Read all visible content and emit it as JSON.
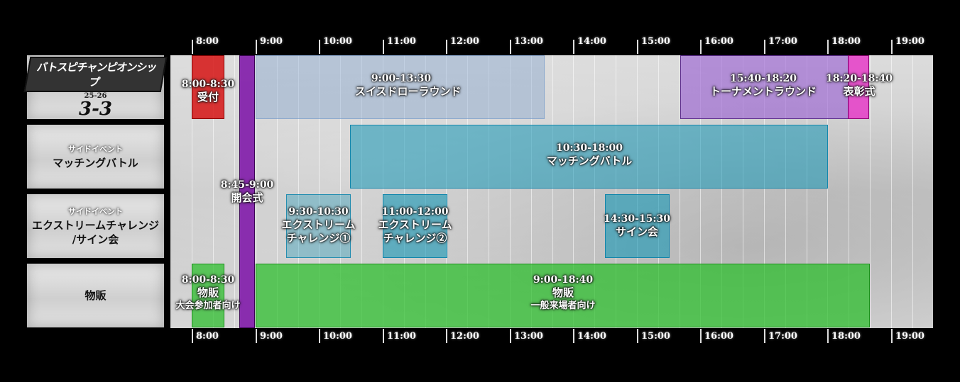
{
  "hours_top": [
    "8:00",
    "9:00",
    "10:00",
    "11:00",
    "12:00",
    "13:00",
    "14:00",
    "15:00",
    "16:00",
    "17:00",
    "18:00",
    "19:00"
  ],
  "hours_bottom": [
    "8:00",
    "9:00",
    "10:00",
    "11:00",
    "12:00",
    "13:00",
    "14:00",
    "15:00",
    "16:00",
    "17:00",
    "18:00",
    "19:00"
  ],
  "rows": [
    {
      "logo": {
        "banner": "バトスピチャンピオンシップ",
        "year": "25-26",
        "num": "3-3"
      }
    },
    {
      "sub": "サイドイベント",
      "main": "マッチングバトル"
    },
    {
      "sub": "サイドイベント",
      "main": "エクストリームチャレンジ\n/サイン会"
    },
    {
      "main": "物販"
    }
  ],
  "events": {
    "reception": {
      "time": "8:00-8:30",
      "name": "受付"
    },
    "opening": {
      "time": "8:45-9:00",
      "name": "開会式"
    },
    "swiss": {
      "time": "9:00-13:30",
      "name": "スイスドローラウンド"
    },
    "tournament": {
      "time": "15:40-18:20",
      "name": "トーナメントラウンド"
    },
    "award": {
      "time": "18:20-18:40",
      "name": "表彰式"
    },
    "matching": {
      "time": "10:30-18:00",
      "name": "マッチングバトル"
    },
    "extreme1": {
      "time": "9:30-10:30",
      "name": "エクストリーム",
      "name2": "チャレンジ①"
    },
    "extreme2": {
      "time": "11:00-12:00",
      "name": "エクストリーム",
      "name2": "チャレンジ②"
    },
    "sign": {
      "time": "14:30-15:30",
      "name": "サイン会"
    },
    "goods_early": {
      "time": "8:00-8:30",
      "name": "物販",
      "note": "大会参加者向け"
    },
    "goods_general": {
      "time": "9:00-18:40",
      "name": "物販",
      "note": "一般来場者向け"
    }
  },
  "colors": {
    "reception": "#d61414",
    "opening": "#821eaa",
    "swiss": "#6e96c8",
    "tournament": "#965ad2",
    "award": "#e63cc8",
    "matching": "#1496b4",
    "goods": "#28be28"
  }
}
